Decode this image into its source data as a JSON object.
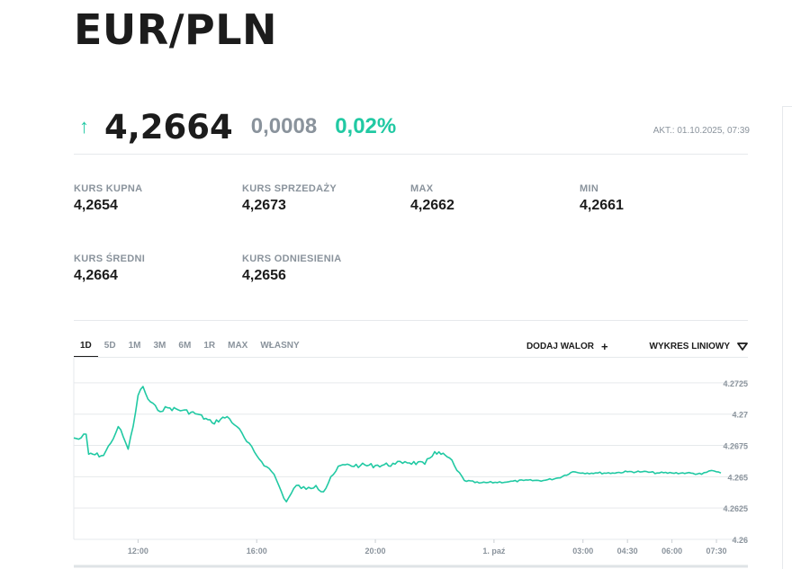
{
  "title": "EUR/PLN",
  "quote": {
    "arrow_icon": "arrow-up-icon",
    "price": "4,2664",
    "change": "0,0008",
    "change_pct": "0,02%",
    "updated": "AKT.: 01.10.2025, 07:39",
    "up_color": "#21c9a3"
  },
  "stats": [
    {
      "label": "KURS KUPNA",
      "value": "4,2654"
    },
    {
      "label": "KURS SPRZEDAŻY",
      "value": "4,2673"
    },
    {
      "label": "MAX",
      "value": "4,2662"
    },
    {
      "label": "MIN",
      "value": "4,2661"
    },
    {
      "label": "KURS ŚREDNI",
      "value": "4,2664"
    },
    {
      "label": "KURS ODNIESIENIA",
      "value": "4,2656"
    }
  ],
  "tabs": [
    "1D",
    "5D",
    "1M",
    "3M",
    "6M",
    "1R",
    "MAX",
    "WŁASNY"
  ],
  "active_tab": "1D",
  "tools": {
    "add_label": "DODAJ WALOR",
    "add_icon": "plus-icon",
    "chart_type_label": "WYKRES LINIOWY",
    "chart_type_icon": "triangle-down-icon"
  },
  "chart_data": {
    "type": "line",
    "color": "#21c9a3",
    "ylim": [
      4.26,
      4.2745
    ],
    "y_ticks": [
      {
        "value": 4.2725,
        "label": "4.2725"
      },
      {
        "value": 4.27,
        "label": "4.27"
      },
      {
        "value": 4.2675,
        "label": "4.2675"
      },
      {
        "value": 4.265,
        "label": "4.265"
      },
      {
        "value": 4.2625,
        "label": "4.2625"
      },
      {
        "value": 4.26,
        "label": "4.26"
      }
    ],
    "x_range": [
      "09:50",
      "07:39"
    ],
    "x_ticks": [
      {
        "x": "12:00",
        "label": "12:00"
      },
      {
        "x": "16:00",
        "label": "16:00"
      },
      {
        "x": "20:00",
        "label": "20:00"
      },
      {
        "x": "00:00",
        "label": "1. paź"
      },
      {
        "x": "03:00",
        "label": "03:00"
      },
      {
        "x": "04:30",
        "label": "04:30"
      },
      {
        "x": "06:00",
        "label": "06:00"
      },
      {
        "x": "07:30",
        "label": "07:30"
      }
    ],
    "points": [
      [
        "09:50",
        4.2681
      ],
      [
        "10:00",
        4.268
      ],
      [
        "10:15",
        4.2684
      ],
      [
        "10:20",
        4.2668
      ],
      [
        "10:50",
        4.2667
      ],
      [
        "11:05",
        4.2677
      ],
      [
        "11:20",
        4.269
      ],
      [
        "11:30",
        4.2682
      ],
      [
        "11:40",
        4.2672
      ],
      [
        "11:50",
        4.269
      ],
      [
        "12:00",
        4.2715
      ],
      [
        "12:10",
        4.2722
      ],
      [
        "12:20",
        4.2712
      ],
      [
        "12:40",
        4.2703
      ],
      [
        "13:00",
        4.2705
      ],
      [
        "13:30",
        4.2703
      ],
      [
        "14:00",
        4.27
      ],
      [
        "14:30",
        4.2693
      ],
      [
        "15:00",
        4.2698
      ],
      [
        "15:20",
        4.269
      ],
      [
        "15:40",
        4.2678
      ],
      [
        "16:00",
        4.2667
      ],
      [
        "16:20",
        4.2658
      ],
      [
        "16:35",
        4.2652
      ],
      [
        "16:50",
        4.2638
      ],
      [
        "17:00",
        4.263
      ],
      [
        "17:20",
        4.2643
      ],
      [
        "17:40",
        4.264
      ],
      [
        "18:00",
        4.2643
      ],
      [
        "18:15",
        4.2638
      ],
      [
        "18:30",
        4.265
      ],
      [
        "18:50",
        4.2659
      ],
      [
        "19:30",
        4.2659
      ],
      [
        "20:00",
        4.2659
      ],
      [
        "20:40",
        4.266
      ],
      [
        "21:00",
        4.2662
      ],
      [
        "21:40",
        4.266
      ],
      [
        "22:00",
        4.267
      ],
      [
        "22:30",
        4.2665
      ],
      [
        "22:45",
        4.2655
      ],
      [
        "23:00",
        4.2647
      ],
      [
        "23:30",
        4.2645
      ],
      [
        "00:30",
        4.2646
      ],
      [
        "01:00",
        4.2647
      ],
      [
        "01:40",
        4.2647
      ],
      [
        "02:10",
        4.2649
      ],
      [
        "02:40",
        4.2654
      ],
      [
        "03:00",
        4.2653
      ],
      [
        "03:30",
        4.2653
      ],
      [
        "04:00",
        4.2653
      ],
      [
        "04:30",
        4.2654
      ],
      [
        "05:00",
        4.2654
      ],
      [
        "05:30",
        4.2653
      ],
      [
        "06:00",
        4.2653
      ],
      [
        "06:30",
        4.2653
      ],
      [
        "07:00",
        4.2652
      ],
      [
        "07:20",
        4.2655
      ],
      [
        "07:39",
        4.2653
      ]
    ]
  }
}
